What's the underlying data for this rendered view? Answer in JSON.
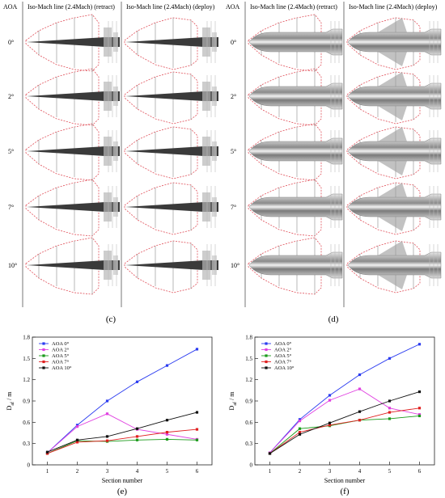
{
  "panels": [
    {
      "label": "(c)",
      "header": {
        "aoa": "AOA",
        "retract": "Iso-Mach line (2.4Mach) (retract)",
        "deploy": "Iso-Mach line (2.4Mach) (deploy)"
      },
      "rows": [
        "0°",
        "2°",
        "5°",
        "7°",
        "10°"
      ],
      "body_style": "dark-slender"
    },
    {
      "label": "(d)",
      "header": {
        "aoa": "AOA",
        "retract": "Iso-Mach line (2.4Mach) (retract)",
        "deploy": "Iso-Mach line (2.4Mach) (deploy)"
      },
      "rows": [
        "0°",
        "2°",
        "5°",
        "7°",
        "10°"
      ],
      "body_style": "grey-blunt"
    }
  ],
  "colors": {
    "iso_line": "#e0505a",
    "section_line": "#888888",
    "divider": "#555555"
  },
  "chart_data": [
    {
      "type": "line",
      "label": "(e)",
      "xlabel": "Section number",
      "ylabel": "D_af / m",
      "x": [
        1,
        2,
        3,
        4,
        5,
        6
      ],
      "xlim": [
        0.5,
        6.5
      ],
      "ylim": [
        0,
        1.8
      ],
      "yticks": [
        "0",
        "0.3",
        "0.6",
        "0.9",
        "1.2",
        "1.5",
        "1.8"
      ],
      "xticks": [
        "1",
        "2",
        "3",
        "4",
        "5",
        "6"
      ],
      "legend_position": "top-left",
      "series": [
        {
          "name": "AOA 0°",
          "color": "#2a3bf0",
          "values": [
            0.17,
            0.56,
            0.9,
            1.17,
            1.4,
            1.63
          ]
        },
        {
          "name": "AOA 2°",
          "color": "#e040e0",
          "values": [
            0.17,
            0.54,
            0.72,
            0.5,
            0.43,
            0.36
          ]
        },
        {
          "name": "AOA 5°",
          "color": "#1a9a1a",
          "values": [
            0.16,
            0.34,
            0.33,
            0.35,
            0.36,
            0.35
          ]
        },
        {
          "name": "AOA 7°",
          "color": "#e02020",
          "values": [
            0.16,
            0.32,
            0.34,
            0.4,
            0.46,
            0.5
          ]
        },
        {
          "name": "AOA 10°",
          "color": "#111111",
          "values": [
            0.18,
            0.35,
            0.4,
            0.51,
            0.63,
            0.74
          ]
        }
      ]
    },
    {
      "type": "line",
      "label": "(f)",
      "xlabel": "Section number",
      "ylabel": "D_af / m",
      "x": [
        1,
        2,
        3,
        4,
        5,
        6
      ],
      "xlim": [
        0.5,
        6.5
      ],
      "ylim": [
        0,
        1.8
      ],
      "yticks": [
        "0",
        "0.3",
        "0.6",
        "0.9",
        "1.2",
        "1.5",
        "1.8"
      ],
      "xticks": [
        "1",
        "2",
        "3",
        "4",
        "5",
        "6"
      ],
      "legend_position": "top-left",
      "series": [
        {
          "name": "AOA 0°",
          "color": "#2a3bf0",
          "values": [
            0.17,
            0.64,
            0.98,
            1.27,
            1.5,
            1.7
          ]
        },
        {
          "name": "AOA 2°",
          "color": "#e040e0",
          "values": [
            0.17,
            0.62,
            0.91,
            1.07,
            0.8,
            0.71
          ]
        },
        {
          "name": "AOA 5°",
          "color": "#1a9a1a",
          "values": [
            0.16,
            0.51,
            0.55,
            0.63,
            0.65,
            0.69
          ]
        },
        {
          "name": "AOA 7°",
          "color": "#e02020",
          "values": [
            0.16,
            0.46,
            0.56,
            0.63,
            0.74,
            0.8
          ]
        },
        {
          "name": "AOA 10°",
          "color": "#111111",
          "values": [
            0.16,
            0.43,
            0.59,
            0.75,
            0.9,
            1.03
          ]
        }
      ]
    }
  ]
}
